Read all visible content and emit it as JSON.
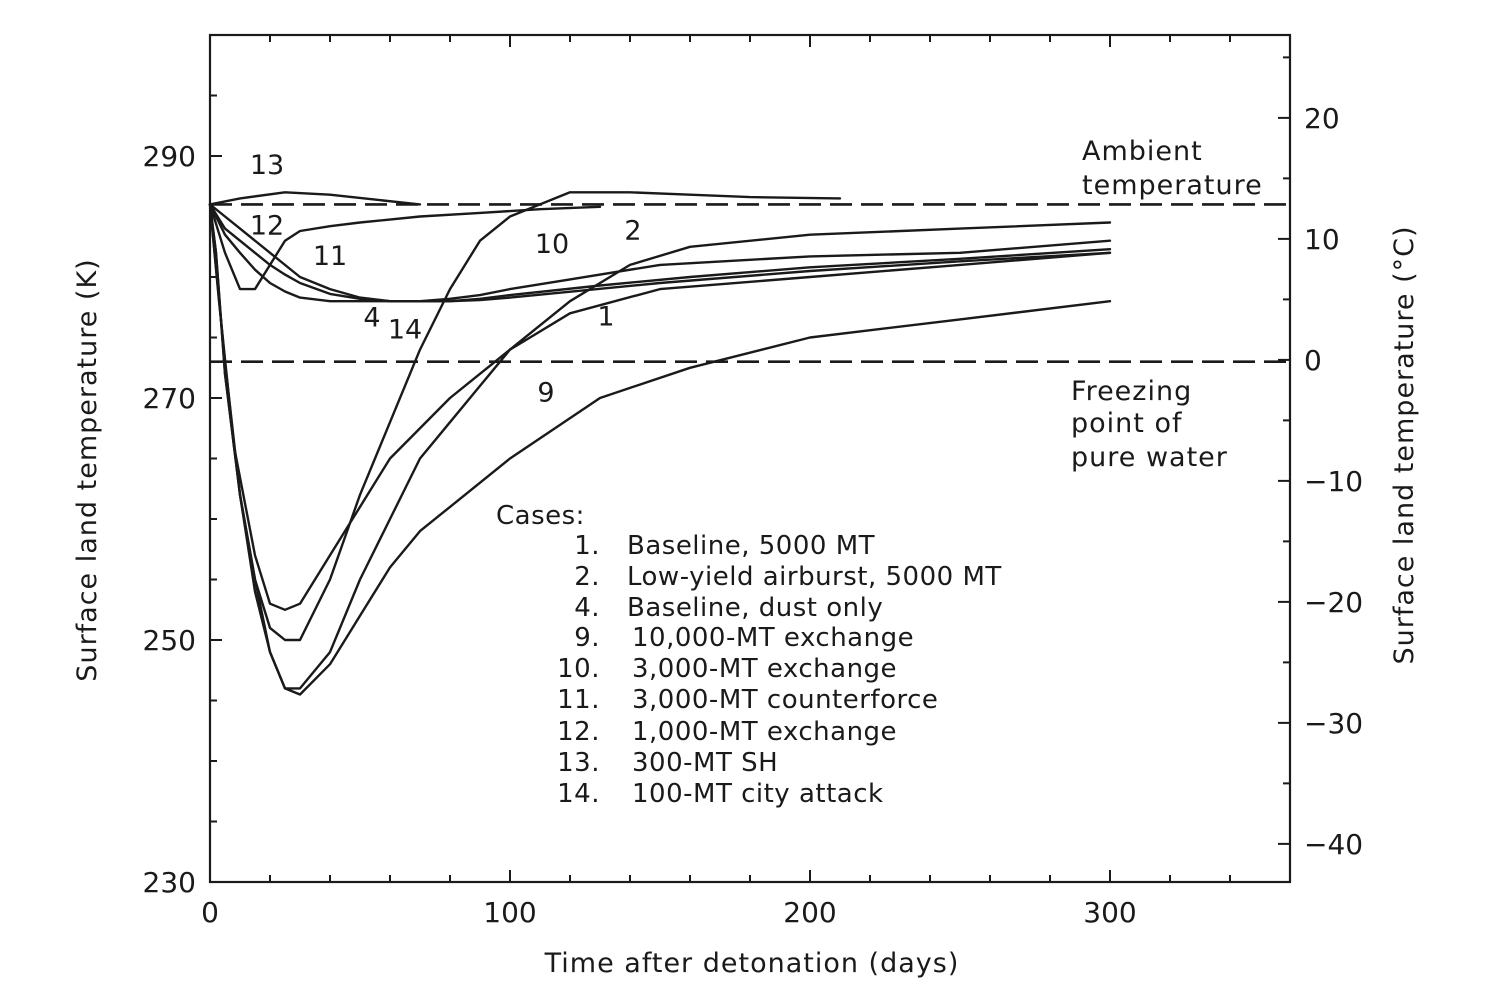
{
  "chart_data": {
    "type": "line",
    "xlabel": "Time after detonation (days)",
    "ylabel": "Surface land temperature (K)",
    "y2label": "Surface land temperature (°C)",
    "xlim": [
      0,
      360
    ],
    "ylim": [
      230,
      300
    ],
    "y2lim": [
      -43.15,
      26.85
    ],
    "x_ticks": [
      0,
      100,
      200,
      300
    ],
    "y_ticks": [
      230,
      250,
      270,
      290
    ],
    "y2_ticks": [
      -40,
      -30,
      -20,
      -10,
      0,
      10,
      20
    ],
    "grid": false,
    "reference_lines": [
      {
        "label": "Ambient temperature",
        "y": 286,
        "style": "dashed"
      },
      {
        "label": "Freezing point of pure water",
        "y": 273,
        "style": "dashed"
      }
    ],
    "annotations": {
      "ambient": [
        "Ambient",
        "temperature"
      ],
      "freezing": [
        "Freezing",
        "point of",
        "pure water"
      ]
    },
    "legend": {
      "title": "Cases:",
      "entries": [
        {
          "num": "1.",
          "text": "Baseline, 5000 MT"
        },
        {
          "num": "2.",
          "text": "Low-yield airburst, 5000 MT"
        },
        {
          "num": "4.",
          "text": "Baseline, dust only"
        },
        {
          "num": "9.",
          "text": "10,000-MT exchange"
        },
        {
          "num": "10.",
          "text": "3,000-MT exchange"
        },
        {
          "num": "11.",
          "text": "3,000-MT counterforce"
        },
        {
          "num": "12.",
          "text": "1,000-MT exchange"
        },
        {
          "num": "13.",
          "text": "300-MT SH"
        },
        {
          "num": "14.",
          "text": "100-MT city attack"
        }
      ]
    },
    "series": [
      {
        "name": "1",
        "x": [
          0,
          2,
          5,
          10,
          15,
          20,
          25,
          30,
          40,
          50,
          60,
          70,
          80,
          90,
          100,
          120,
          150,
          200,
          250,
          300
        ],
        "y": [
          286,
          282,
          272,
          262,
          255,
          249,
          246,
          246,
          249,
          255,
          260,
          265,
          268,
          271,
          274,
          277,
          279,
          280,
          281,
          282
        ]
      },
      {
        "name": "2",
        "x": [
          0,
          3,
          8,
          15,
          20,
          25,
          30,
          40,
          60,
          80,
          100,
          120,
          140,
          160,
          200,
          250,
          300
        ],
        "y": [
          286,
          278,
          266,
          257,
          253,
          252.5,
          253,
          257,
          265,
          270,
          274,
          278,
          281,
          282.5,
          283.5,
          284,
          284.5
        ]
      },
      {
        "name": "4",
        "x": [
          0,
          5,
          10,
          20,
          30,
          40,
          50,
          60,
          70,
          80,
          90,
          100,
          130,
          160,
          200,
          250,
          300
        ],
        "y": [
          286,
          285,
          284,
          282,
          280,
          279,
          278.3,
          278,
          278,
          278,
          278.2,
          278.5,
          279.3,
          280,
          280.8,
          281.5,
          282.3
        ]
      },
      {
        "name": "9",
        "x": [
          0,
          2,
          5,
          10,
          15,
          20,
          25,
          30,
          40,
          50,
          60,
          70,
          80,
          100,
          130,
          160,
          200,
          250,
          300
        ],
        "y": [
          286,
          282,
          272,
          262,
          254,
          249,
          246,
          245.5,
          248,
          252,
          256,
          259,
          261,
          265,
          270,
          272.5,
          275,
          276.5,
          278
        ]
      },
      {
        "name": "10",
        "x": [
          0,
          5,
          10,
          15,
          20,
          25,
          30,
          40,
          50,
          60,
          70,
          80,
          90,
          100,
          110,
          120,
          140,
          160,
          180,
          210
        ],
        "y": [
          286,
          273,
          262,
          255,
          251,
          250,
          250,
          255,
          262,
          268,
          274,
          279,
          283,
          285,
          286,
          287,
          287,
          286.8,
          286.6,
          286.5
        ]
      },
      {
        "name": "11",
        "x": [
          0,
          5,
          10,
          15,
          20,
          25,
          30,
          40,
          50,
          70,
          90,
          110,
          130
        ],
        "y": [
          286,
          282,
          279,
          279,
          281,
          283,
          283.8,
          284.2,
          284.5,
          285,
          285.3,
          285.6,
          285.8
        ]
      },
      {
        "name": "12",
        "x": [
          0,
          5,
          10,
          15,
          20,
          25,
          30,
          40,
          50,
          60,
          70,
          80,
          90,
          100,
          120,
          150,
          200,
          250,
          300
        ],
        "y": [
          286,
          284,
          283,
          282,
          281,
          280.2,
          279.5,
          278.6,
          278.2,
          278,
          278,
          278.2,
          278.5,
          279,
          279.8,
          281,
          281.7,
          282,
          283
        ]
      },
      {
        "name": "13",
        "x": [
          0,
          10,
          25,
          40,
          55,
          70
        ],
        "y": [
          286,
          286.5,
          287,
          286.8,
          286.4,
          286
        ]
      },
      {
        "name": "14",
        "x": [
          0,
          5,
          10,
          15,
          20,
          25,
          30,
          40,
          50,
          60,
          70,
          80,
          90,
          100,
          150,
          200,
          250,
          300
        ],
        "y": [
          286,
          283.5,
          282,
          280.6,
          279.5,
          278.8,
          278.3,
          278,
          278,
          278,
          278,
          278,
          278.1,
          278.3,
          279.5,
          280.5,
          281.3,
          282
        ]
      }
    ],
    "curve_labels": [
      {
        "text": "13",
        "x": 19,
        "y": 288.5
      },
      {
        "text": "12",
        "x": 19,
        "y": 283.5
      },
      {
        "text": "11",
        "x": 40,
        "y": 281.0
      },
      {
        "text": "10",
        "x": 114,
        "y": 282.0
      },
      {
        "text": "2",
        "x": 141,
        "y": 283.1
      },
      {
        "text": "4",
        "x": 54,
        "y": 275.9
      },
      {
        "text": "14",
        "x": 65,
        "y": 274.9
      },
      {
        "text": "1",
        "x": 132,
        "y": 276.0
      },
      {
        "text": "9",
        "x": 112,
        "y": 269.7
      }
    ]
  }
}
